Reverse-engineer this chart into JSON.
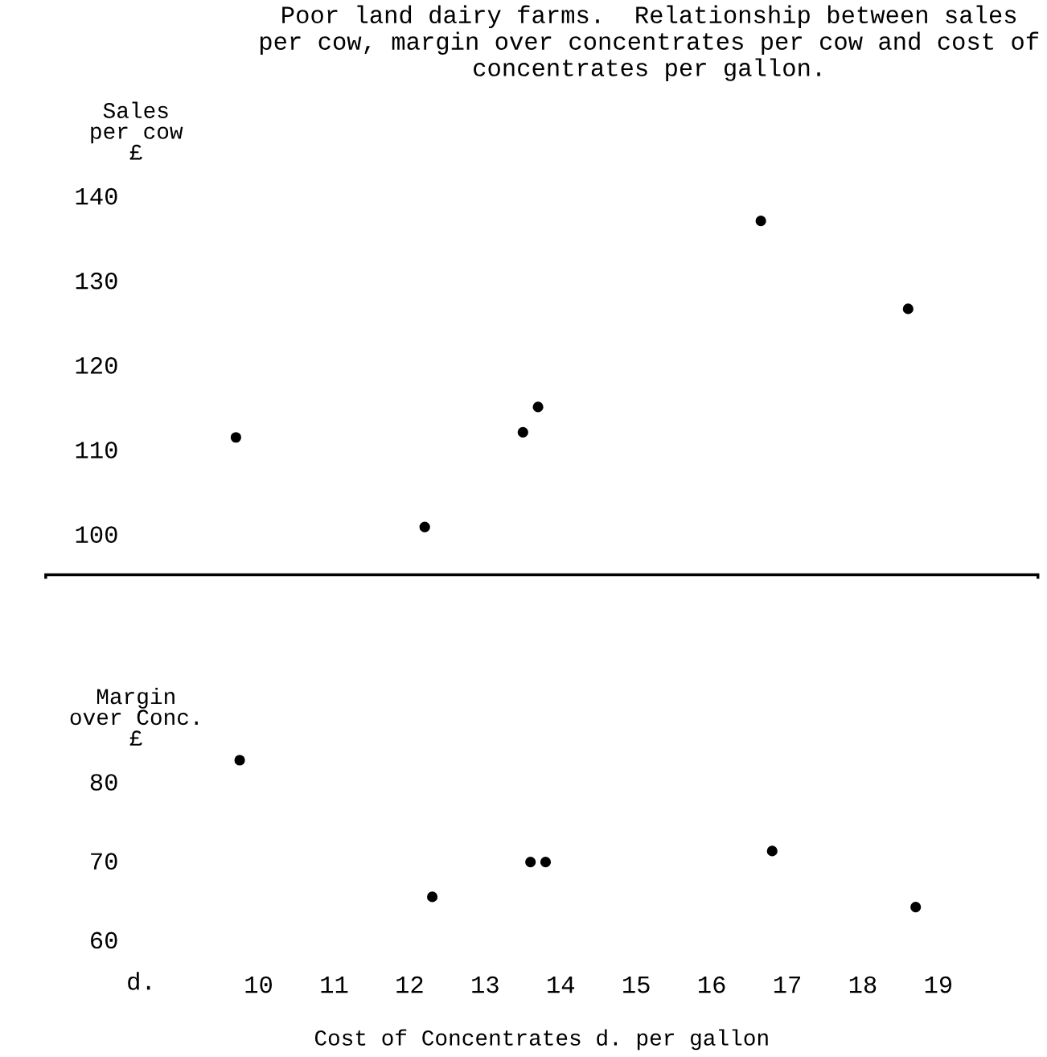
{
  "chart_data": [
    {
      "type": "scatter",
      "title": "Poor land dairy farms.  Relationship between sales per cow, margin over concentrates per cow and cost of concentrates per gallon.",
      "ylabel": "Sales\nper cow\n£",
      "x": [
        9.7,
        12.2,
        13.5,
        13.7,
        16.65,
        18.6
      ],
      "series": [
        {
          "color": "#000000",
          "values": [
            111.4,
            100.8,
            112,
            115,
            137,
            126.6
          ]
        }
      ],
      "xlim": [
        7.2,
        20.3
      ],
      "xticks": [
        10,
        11,
        12,
        13,
        14,
        15,
        16,
        17,
        18,
        19
      ],
      "ylim": [
        95,
        140
      ],
      "yticks": [
        100,
        110,
        120,
        130,
        140
      ],
      "tick_labels": "y",
      "marker": "circle",
      "grid": false
    },
    {
      "type": "scatter",
      "ylabel": "Margin\nover Conc.\n£",
      "xlabel": "Cost of Concentrates d. per gallon",
      "annotations": [
        "d."
      ],
      "x": [
        9.75,
        12.3,
        13.6,
        13.8,
        16.8,
        18.7
      ],
      "series": [
        {
          "color": "#000000",
          "values": [
            82.7,
            65.4,
            69.8,
            69.8,
            71.2,
            64.1
          ]
        }
      ],
      "xlim": [
        7.2,
        20.3
      ],
      "xticks": [
        10,
        11,
        12,
        13,
        14,
        15,
        16,
        17,
        18,
        19
      ],
      "ylim": [
        56.5,
        106
      ],
      "yticks": [
        60,
        70,
        80
      ],
      "marker": "circle",
      "grid": false
    }
  ]
}
